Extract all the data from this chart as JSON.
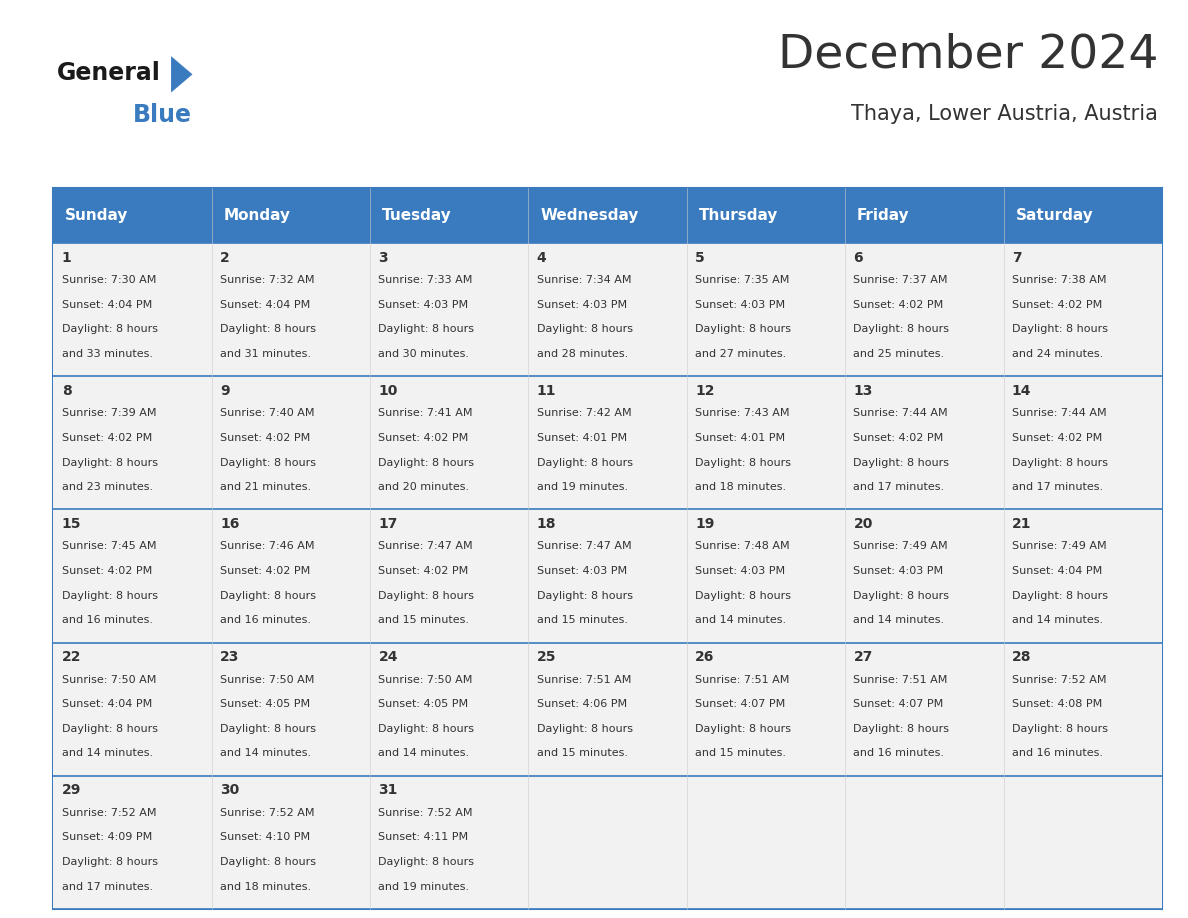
{
  "title": "December 2024",
  "subtitle": "Thaya, Lower Austria, Austria",
  "header_color": "#3a7bbf",
  "header_text_color": "#ffffff",
  "cell_bg": "#f2f2f2",
  "text_color": "#333333",
  "days_of_week": [
    "Sunday",
    "Monday",
    "Tuesday",
    "Wednesday",
    "Thursday",
    "Friday",
    "Saturday"
  ],
  "logo_general_color": "#1a1a1a",
  "logo_blue_color": "#3a7bbf",
  "title_fontsize": 32,
  "subtitle_fontsize": 16,
  "header_fontsize": 11,
  "day_num_fontsize": 10,
  "cell_text_fontsize": 8,
  "calendar": [
    [
      {
        "day": 1,
        "sunrise": "7:30 AM",
        "sunset": "4:04 PM",
        "daylight": "8 hours and 33 minutes."
      },
      {
        "day": 2,
        "sunrise": "7:32 AM",
        "sunset": "4:04 PM",
        "daylight": "8 hours and 31 minutes."
      },
      {
        "day": 3,
        "sunrise": "7:33 AM",
        "sunset": "4:03 PM",
        "daylight": "8 hours and 30 minutes."
      },
      {
        "day": 4,
        "sunrise": "7:34 AM",
        "sunset": "4:03 PM",
        "daylight": "8 hours and 28 minutes."
      },
      {
        "day": 5,
        "sunrise": "7:35 AM",
        "sunset": "4:03 PM",
        "daylight": "8 hours and 27 minutes."
      },
      {
        "day": 6,
        "sunrise": "7:37 AM",
        "sunset": "4:02 PM",
        "daylight": "8 hours and 25 minutes."
      },
      {
        "day": 7,
        "sunrise": "7:38 AM",
        "sunset": "4:02 PM",
        "daylight": "8 hours and 24 minutes."
      }
    ],
    [
      {
        "day": 8,
        "sunrise": "7:39 AM",
        "sunset": "4:02 PM",
        "daylight": "8 hours and 23 minutes."
      },
      {
        "day": 9,
        "sunrise": "7:40 AM",
        "sunset": "4:02 PM",
        "daylight": "8 hours and 21 minutes."
      },
      {
        "day": 10,
        "sunrise": "7:41 AM",
        "sunset": "4:02 PM",
        "daylight": "8 hours and 20 minutes."
      },
      {
        "day": 11,
        "sunrise": "7:42 AM",
        "sunset": "4:01 PM",
        "daylight": "8 hours and 19 minutes."
      },
      {
        "day": 12,
        "sunrise": "7:43 AM",
        "sunset": "4:01 PM",
        "daylight": "8 hours and 18 minutes."
      },
      {
        "day": 13,
        "sunrise": "7:44 AM",
        "sunset": "4:02 PM",
        "daylight": "8 hours and 17 minutes."
      },
      {
        "day": 14,
        "sunrise": "7:44 AM",
        "sunset": "4:02 PM",
        "daylight": "8 hours and 17 minutes."
      }
    ],
    [
      {
        "day": 15,
        "sunrise": "7:45 AM",
        "sunset": "4:02 PM",
        "daylight": "8 hours and 16 minutes."
      },
      {
        "day": 16,
        "sunrise": "7:46 AM",
        "sunset": "4:02 PM",
        "daylight": "8 hours and 16 minutes."
      },
      {
        "day": 17,
        "sunrise": "7:47 AM",
        "sunset": "4:02 PM",
        "daylight": "8 hours and 15 minutes."
      },
      {
        "day": 18,
        "sunrise": "7:47 AM",
        "sunset": "4:03 PM",
        "daylight": "8 hours and 15 minutes."
      },
      {
        "day": 19,
        "sunrise": "7:48 AM",
        "sunset": "4:03 PM",
        "daylight": "8 hours and 14 minutes."
      },
      {
        "day": 20,
        "sunrise": "7:49 AM",
        "sunset": "4:03 PM",
        "daylight": "8 hours and 14 minutes."
      },
      {
        "day": 21,
        "sunrise": "7:49 AM",
        "sunset": "4:04 PM",
        "daylight": "8 hours and 14 minutes."
      }
    ],
    [
      {
        "day": 22,
        "sunrise": "7:50 AM",
        "sunset": "4:04 PM",
        "daylight": "8 hours and 14 minutes."
      },
      {
        "day": 23,
        "sunrise": "7:50 AM",
        "sunset": "4:05 PM",
        "daylight": "8 hours and 14 minutes."
      },
      {
        "day": 24,
        "sunrise": "7:50 AM",
        "sunset": "4:05 PM",
        "daylight": "8 hours and 14 minutes."
      },
      {
        "day": 25,
        "sunrise": "7:51 AM",
        "sunset": "4:06 PM",
        "daylight": "8 hours and 15 minutes."
      },
      {
        "day": 26,
        "sunrise": "7:51 AM",
        "sunset": "4:07 PM",
        "daylight": "8 hours and 15 minutes."
      },
      {
        "day": 27,
        "sunrise": "7:51 AM",
        "sunset": "4:07 PM",
        "daylight": "8 hours and 16 minutes."
      },
      {
        "day": 28,
        "sunrise": "7:52 AM",
        "sunset": "4:08 PM",
        "daylight": "8 hours and 16 minutes."
      }
    ],
    [
      {
        "day": 29,
        "sunrise": "7:52 AM",
        "sunset": "4:09 PM",
        "daylight": "8 hours and 17 minutes."
      },
      {
        "day": 30,
        "sunrise": "7:52 AM",
        "sunset": "4:10 PM",
        "daylight": "8 hours and 18 minutes."
      },
      {
        "day": 31,
        "sunrise": "7:52 AM",
        "sunset": "4:11 PM",
        "daylight": "8 hours and 19 minutes."
      },
      null,
      null,
      null,
      null
    ]
  ]
}
